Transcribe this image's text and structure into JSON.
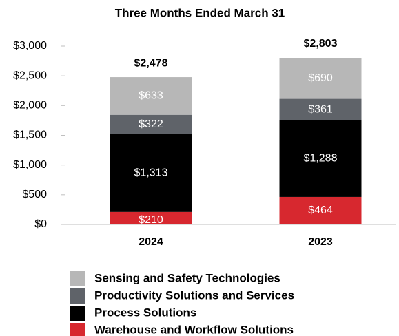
{
  "chart_data": {
    "type": "stacked_bar",
    "title": "Three Months Ended March 31",
    "categories": [
      "2024",
      "2023"
    ],
    "series": [
      {
        "name": "Warehouse and Workflow Solutions",
        "color": "#d7282f",
        "values": [
          210,
          464
        ],
        "value_labels": [
          "$210",
          "$464"
        ]
      },
      {
        "name": "Process Solutions",
        "color": "#000000",
        "values": [
          1313,
          1288
        ],
        "value_labels": [
          "$1,313",
          "$1,288"
        ]
      },
      {
        "name": "Productivity Solutions and Services",
        "color": "#5f6369",
        "values": [
          322,
          361
        ],
        "value_labels": [
          "$322",
          "$361"
        ]
      },
      {
        "name": "Sensing and Safety Technologies",
        "color": "#b7b7b7",
        "values": [
          633,
          690
        ],
        "value_labels": [
          "$633",
          "$690"
        ]
      }
    ],
    "totals": [
      2478,
      2803
    ],
    "total_labels": [
      "$2,478",
      "$2,803"
    ],
    "ylim": [
      0,
      3000
    ],
    "yticks": [
      {
        "value": 0,
        "label": "$0"
      },
      {
        "value": 500,
        "label": "$500"
      },
      {
        "value": 1000,
        "label": "$1,000"
      },
      {
        "value": 1500,
        "label": "$1,500"
      },
      {
        "value": 2000,
        "label": "$2,000"
      },
      {
        "value": 2500,
        "label": "$2,500"
      },
      {
        "value": 3000,
        "label": "$3,000"
      }
    ],
    "grid": false
  }
}
